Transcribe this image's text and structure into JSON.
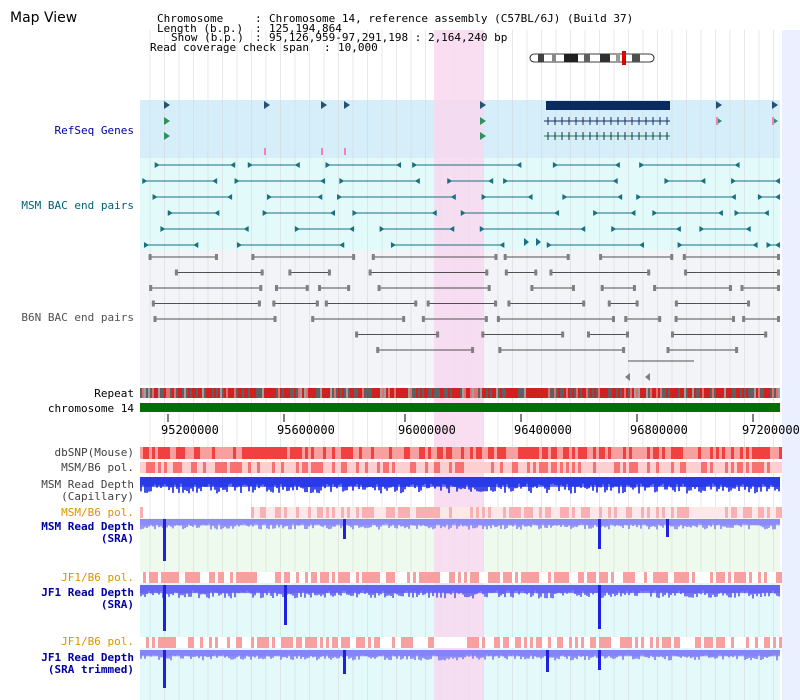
{
  "window": {
    "title": "Map View"
  },
  "info": {
    "chromosome_key": "Chromosome",
    "chromosome_val": "Chromosome 14, reference assembly (C57BL/6J) (Build 37)",
    "length_key": "Length (b.p.)",
    "length_val": "125,194,864",
    "show_key": "Show (b.p.)",
    "show_val": "95,126,959-97,291,198 : 2,164,240 bp",
    "coverage_key": "Read coverage check span",
    "coverage_val": "10,000"
  },
  "tracks": {
    "refseq": "RefSeq Genes",
    "msm_bac": "MSM BAC end pairs",
    "b6n_bac": "B6N BAC end pairs",
    "repeat": "Repeat",
    "chromosome": "chromosome 14",
    "dbsnp": "dbSNP(Mouse)",
    "msm_b6_pol": "MSM/B6 pol.",
    "msm_depth_cap_1": "MSM Read Depth",
    "msm_depth_cap_2": "(Capillary)",
    "msm_b6_pol2": "MSM/B6 pol.",
    "msm_depth_sra_1": "MSM Read Depth",
    "msm_depth_sra_2": "(SRA)",
    "jf1_b6_pol": "JF1/B6 pol.",
    "jf1_depth_sra_1": "JF1 Read Depth",
    "jf1_depth_sra_2": "(SRA)",
    "jf1_b6_pol2": "JF1/B6 pol.",
    "jf1_depth_trim_1": "JF1 Read Depth",
    "jf1_depth_trim_2": "(SRA trimmed)"
  },
  "axis": {
    "ticks": [
      "95200000",
      "95600000",
      "96000000",
      "96400000",
      "96800000",
      "97200000"
    ]
  },
  "colors": {
    "highlight": "#f8d8f0",
    "refseq_bg": "#d6eefa",
    "msm_bg": "#e2fafa",
    "b6n_bg": "#f2f4f8",
    "chromosome": "#007000",
    "depth_blue": "#2020e0",
    "label_blue": "#0000a0",
    "label_orange": "#e09000",
    "label_teal": "#006070"
  }
}
